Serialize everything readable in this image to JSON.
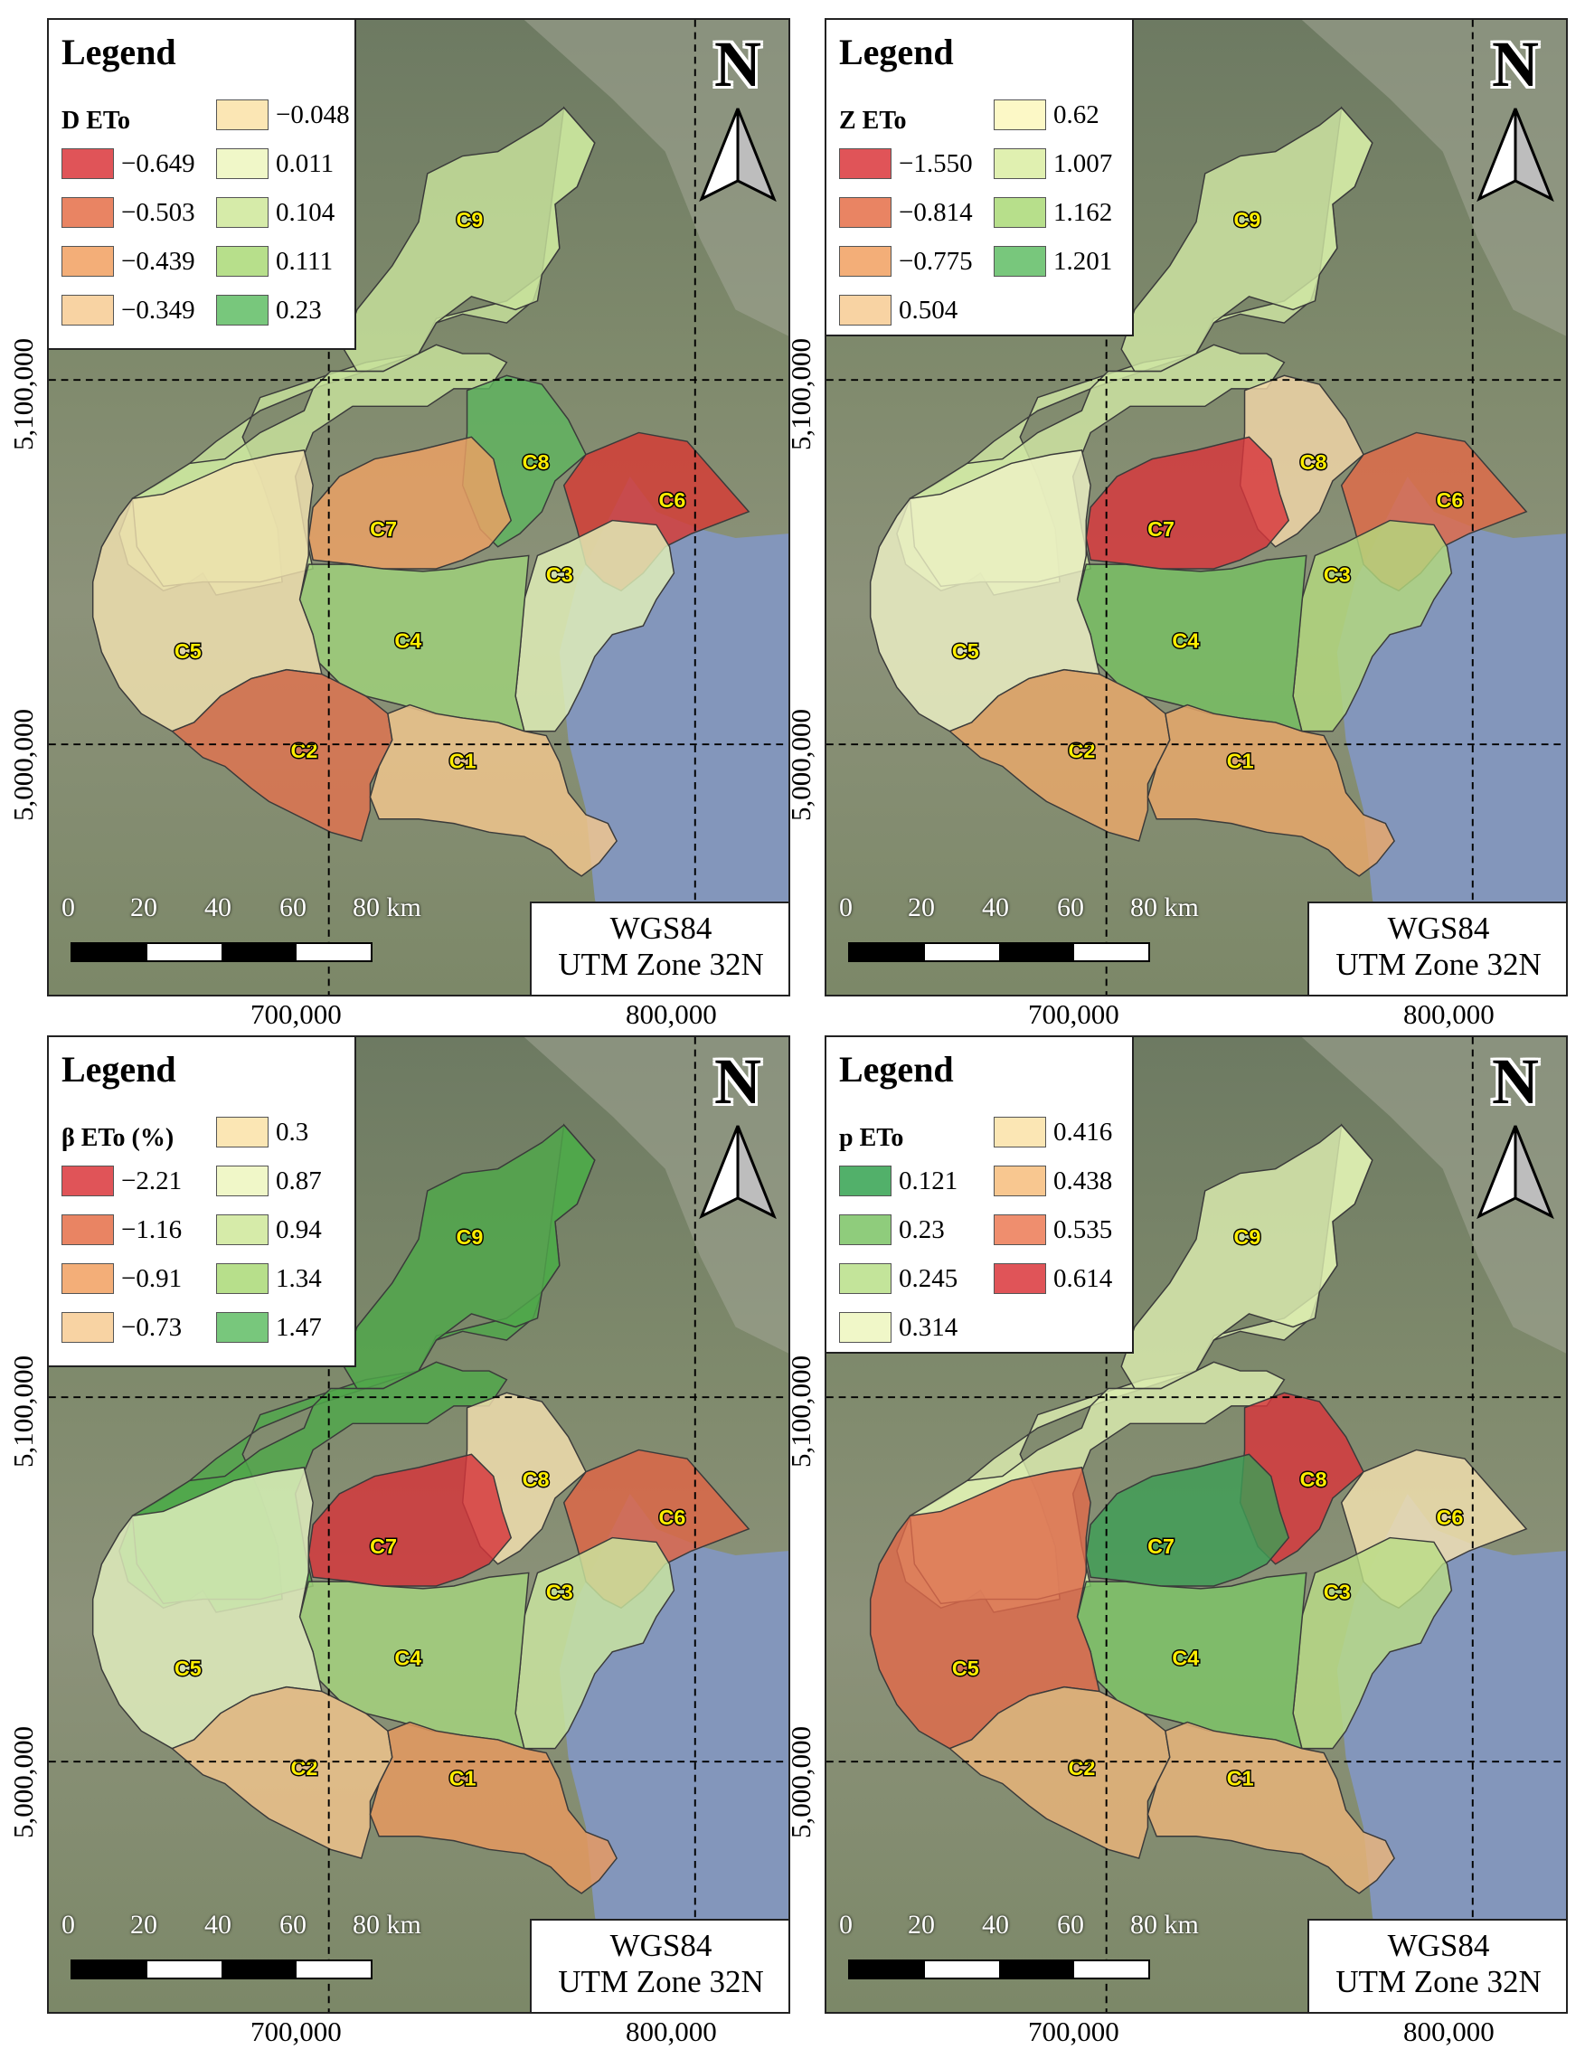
{
  "panels": [
    {
      "legend_title": "Legend",
      "variable": "D ETo",
      "items": [
        {
          "label": "−0.649",
          "color": "#e05458"
        },
        {
          "label": "−0.503",
          "color": "#e98463"
        },
        {
          "label": "−0.439",
          "color": "#f3ae78"
        },
        {
          "label": "−0.349",
          "color": "#f8d3a3"
        },
        {
          "label": "−0.048",
          "color": "#fbe6b4"
        },
        {
          "label": "0.011",
          "color": "#f0f7c8"
        },
        {
          "label": "0.104",
          "color": "#d6eba9"
        },
        {
          "label": "0.111",
          "color": "#b7df8b"
        },
        {
          "label": "0.23",
          "color": "#78c77c"
        }
      ],
      "regions": {
        "C1": "#f3c78d",
        "C2": "#e0734f",
        "C3": "#e2f0b8",
        "C4": "#9fd27a",
        "C5": "#f2e2b0",
        "C6": "#d73a34",
        "C7": "#eea164",
        "C8": "#5fb55f",
        "C9": "#c8e39c",
        "outer": "#c8e39c"
      }
    },
    {
      "legend_title": "Legend",
      "variable": "Z ETo",
      "items": [
        {
          "label": "−1.550",
          "color": "#e05458"
        },
        {
          "label": "−0.814",
          "color": "#e98463"
        },
        {
          "label": "−0.775",
          "color": "#f3ae78"
        },
        {
          "label": "0.504",
          "color": "#f8d3a3"
        },
        {
          "label": "0.62",
          "color": "#fcf8c6"
        },
        {
          "label": "1.007",
          "color": "#e0f0b0"
        },
        {
          "label": "1.162",
          "color": "#b7df8b"
        },
        {
          "label": "1.201",
          "color": "#78c77c"
        }
      ],
      "regions": {
        "C1": "#eaa86a",
        "C2": "#eaa86a",
        "C3": "#b3d97e",
        "C4": "#76bf62",
        "C5": "#eef2c6",
        "C6": "#e06a48",
        "C7": "#d8363c",
        "C8": "#f3d7a8",
        "C9": "#cfe6a4",
        "outer": "#cfe6a4"
      }
    },
    {
      "legend_title": "Legend",
      "variable": "β ETo (%)",
      "items": [
        {
          "label": "−2.21",
          "color": "#e05458"
        },
        {
          "label": "−1.16",
          "color": "#e98463"
        },
        {
          "label": "−0.91",
          "color": "#f3ae78"
        },
        {
          "label": "−0.73",
          "color": "#f8d3a3"
        },
        {
          "label": "0.3",
          "color": "#fbe6b4"
        },
        {
          "label": "0.87",
          "color": "#f0f7c8"
        },
        {
          "label": "0.94",
          "color": "#d6eba9"
        },
        {
          "label": "1.34",
          "color": "#b7df8b"
        },
        {
          "label": "1.47",
          "color": "#78c77c"
        }
      ],
      "regions": {
        "C1": "#e99a5f",
        "C2": "#f2c48c",
        "C3": "#cbe6a0",
        "C4": "#a5d47e",
        "C5": "#e3f0c0",
        "C6": "#df6546",
        "C7": "#d6343a",
        "C8": "#f4e1b0",
        "C9": "#4fa84a",
        "outer": "#4fa84a"
      }
    },
    {
      "legend_title": "Legend",
      "variable": "p ETo",
      "items": [
        {
          "label": "0.121",
          "color": "#52b06a"
        },
        {
          "label": "0.23",
          "color": "#8fcc7c"
        },
        {
          "label": "0.245",
          "color": "#c3e49a"
        },
        {
          "label": "0.314",
          "color": "#f0f7c8"
        },
        {
          "label": "0.416",
          "color": "#fbe6b4"
        },
        {
          "label": "0.438",
          "color": "#f8c790"
        },
        {
          "label": "0.535",
          "color": "#ef8e6e"
        },
        {
          "label": "0.614",
          "color": "#e05458"
        }
      ],
      "regions": {
        "C1": "#eab57a",
        "C2": "#eab57a",
        "C3": "#b9dd86",
        "C4": "#7cc466",
        "C5": "#e06a4a",
        "C6": "#f4e2b0",
        "C7": "#3e9e56",
        "C8": "#d8363c",
        "C9": "#dcedb0",
        "outer": "#dcedb0"
      }
    }
  ],
  "map_common": {
    "north_letter": "N",
    "crs_line1": "WGS84",
    "crs_line2": "UTM Zone 32N",
    "scale_labels": [
      "0",
      "20",
      "40",
      "60",
      "80 km"
    ],
    "x_ticks": [
      "700,000",
      "800,000"
    ],
    "y_ticks": [
      "5,100,000",
      "5,000,000"
    ],
    "region_names": [
      "C1",
      "C2",
      "C3",
      "C4",
      "C5",
      "C6",
      "C7",
      "C8",
      "C9"
    ]
  }
}
